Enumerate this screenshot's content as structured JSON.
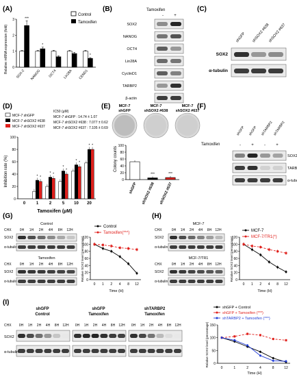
{
  "panels": {
    "A": {
      "letter": "(A)",
      "ylabel": "Relative mRNA expression (fold)",
      "legend": [
        "Control",
        "Tamoxifen"
      ],
      "chart_data": {
        "type": "bar",
        "categories": [
          "SOX-2",
          "NANOG",
          "OCT4",
          "Lin28A",
          "CEND1"
        ],
        "series": [
          {
            "name": "Control",
            "values": [
              1,
              1,
              1,
              1,
              1
            ],
            "err": [
              0.05,
              0.05,
              0.05,
              0.05,
              0.05
            ]
          },
          {
            "name": "Tamoxifen",
            "values": [
              2.6,
              1.15,
              0.65,
              0.85,
              0.55
            ],
            "err": [
              0.3,
              0.1,
              0.06,
              0.08,
              0.05
            ]
          }
        ],
        "yticks": [
          "0",
          "1",
          "2",
          "3"
        ],
        "ylim": [
          0,
          3
        ],
        "stars": [
          "***",
          "*",
          "",
          "",
          "*"
        ]
      }
    },
    "B": {
      "letter": "(B)",
      "header": "Tamoxifen",
      "signs": [
        "-",
        "+"
      ],
      "rows": [
        "SOX2",
        "NANOG",
        "OCT4",
        "Lin28A",
        "CyclinD1",
        "TARBP2",
        "β-actin"
      ]
    },
    "C": {
      "letter": "(C)",
      "lanes": [
        "shGFP",
        "shSOX2 #638",
        "shSOX2 #637"
      ],
      "rows": [
        "SOX2",
        "α-tubulin"
      ]
    },
    "D": {
      "letter": "(D)",
      "legend": [
        "MCF-7 shGFP",
        "MCF-7 shSOX2 #638",
        "MCF-7 shSOX2 #637"
      ],
      "ic50_title": "IC50 (μM)",
      "ic50": [
        "MCF-7 shGFP : 14.74 ± 1.07",
        "MCF-7 shSOX2 #638 : 7.077 ± 0.62",
        "MCF-7 shSOX2 #637 : 7.105 ± 0.69"
      ],
      "ylabel": "Inhibition rate (%)",
      "xlabel": "Tamoxifen (μM)",
      "chart_data": {
        "type": "bar",
        "categories": [
          "0",
          "1",
          "2",
          "5",
          "10",
          "20"
        ],
        "series": [
          {
            "name": "MCF-7 shGFP",
            "values": [
              0,
              12,
              20,
              28,
              45,
              58
            ]
          },
          {
            "name": "MCF-7 shSOX2 #638",
            "values": [
              0,
              30,
              35,
              45,
              55,
              80
            ]
          },
          {
            "name": "MCF-7 shSOX2 #637",
            "values": [
              0,
              28,
              33,
              40,
              52,
              80
            ]
          }
        ],
        "yticks": [
          "0",
          "20",
          "40",
          "60",
          "80",
          "100"
        ],
        "ylim": [
          0,
          100
        ]
      }
    },
    "E": {
      "letter": "(E)",
      "plates": [
        "MCF-7 shGFP",
        "MCF-7 shSOX2 #638",
        "MCF-7 shSOX2 #637"
      ],
      "ylabel": "Colony counts",
      "chart_data": {
        "type": "bar",
        "categories": [
          "shGFP",
          "shSOX2 #638",
          "shSOX2 #637"
        ],
        "values": [
          52,
          5,
          6
        ],
        "yticks": [
          "0",
          "20",
          "40",
          "60",
          "80",
          "100"
        ],
        "ylim": [
          0,
          100
        ],
        "stars": [
          "",
          "***",
          "***"
        ]
      }
    },
    "F": {
      "letter": "(F)",
      "tam_label": "Tamoxifen",
      "lanes": [
        "shGFP",
        "shGFP",
        "shTARBP2",
        "shTARBP2"
      ],
      "signs": [
        "-",
        "+",
        "-",
        "+"
      ],
      "rows": [
        "SOX2",
        "TARBP2",
        "α-tubulin"
      ]
    },
    "G": {
      "letter": "(G)",
      "chx": "CHX",
      "times": [
        "0H",
        "1H",
        "2H",
        "4H",
        "8H",
        "12H"
      ],
      "blots": [
        {
          "title": "Control",
          "rows": [
            "SOX2",
            "α-tubulin"
          ]
        },
        {
          "title": "Tamoxifen",
          "rows": [
            "SOX2",
            "α-tubulin"
          ]
        }
      ],
      "legend": [
        "Control",
        "Tamoxifen(***)"
      ],
      "ylabel": "Relative SOX2 level (percentage)",
      "xlabel": "Time (H)",
      "chart_data": {
        "type": "line",
        "x": [
          "0",
          "1",
          "2",
          "4",
          "8",
          "12"
        ],
        "series": [
          {
            "name": "Control",
            "values": [
              100,
              88,
              80,
              65,
              45,
              18
            ]
          },
          {
            "name": "Tamoxifen(***)",
            "values": [
              100,
              98,
              95,
              90,
              88,
              85
            ]
          }
        ],
        "yticks": [
          "0",
          "20",
          "40",
          "60",
          "80",
          "100",
          "120"
        ],
        "ylim": [
          0,
          120
        ]
      }
    },
    "H": {
      "letter": "(H)",
      "chx": "CHX",
      "times": [
        "0H",
        "1H",
        "2H",
        "4H",
        "8H",
        "12H"
      ],
      "blots": [
        {
          "title": "MCF-7",
          "rows": [
            "SOX2",
            "α-tubulin"
          ]
        },
        {
          "title": "MCF-7/TR1",
          "rows": [
            "SOX2",
            "α-tubulin"
          ]
        }
      ],
      "legend": [
        "MCF-7",
        "MCF-7/TR1(*)"
      ],
      "ylabel": "Relative SOX2 level (percentage)",
      "xlabel": "Time (H)",
      "chart_data": {
        "type": "line",
        "x": [
          "0",
          "1",
          "2",
          "4",
          "8",
          "12"
        ],
        "series": [
          {
            "name": "MCF-7",
            "values": [
              100,
              85,
              70,
              50,
              35,
              22
            ]
          },
          {
            "name": "MCF-7/TR1(*)",
            "values": [
              100,
              95,
              92,
              85,
              80,
              75
            ]
          }
        ],
        "yticks": [
          "0",
          "20",
          "40",
          "60",
          "80",
          "100",
          "120"
        ],
        "ylim": [
          0,
          120
        ]
      }
    },
    "I": {
      "letter": "(I)",
      "chx": "CHX",
      "times": [
        "0H",
        "1H",
        "2H",
        "4H",
        "8H",
        "12H"
      ],
      "groups": [
        {
          "title1": "shGFP",
          "title2": "Control"
        },
        {
          "title1": "shGFP",
          "title2": "Tamoxifen"
        },
        {
          "title1": "shTARBP2",
          "title2": "Tamoxifen"
        }
      ],
      "rows": [
        "SOX2",
        "α-tubulin"
      ],
      "legend": [
        "shGFP + Control",
        "shGFP + Tamoxifen (***)",
        "shTARBP2 + Tamoxifen (***)"
      ],
      "ylabel": "Relative SOX2 level (percentage)",
      "xlabel": "Time (H)",
      "chart_data": {
        "type": "line",
        "x": [
          "0",
          "1",
          "2",
          "4",
          "8",
          "12"
        ],
        "series": [
          {
            "name": "shGFP + Control",
            "values": [
              100,
              85,
              65,
              45,
              20,
              5
            ]
          },
          {
            "name": "shGFP + Tamoxifen (***)",
            "values": [
              100,
              105,
              115,
              110,
              95,
              90
            ]
          },
          {
            "name": "shTARBP2 + Tamoxifen (***)",
            "values": [
              100,
              90,
              70,
              30,
              10,
              8
            ]
          }
        ],
        "yticks": [
          "0",
          "50",
          "100",
          "150"
        ],
        "ylim": [
          0,
          150
        ]
      }
    }
  }
}
